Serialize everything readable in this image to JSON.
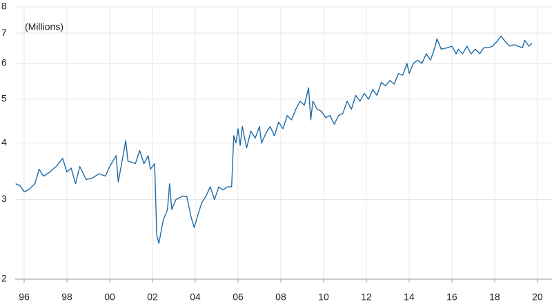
{
  "chart_data": {
    "type": "line",
    "annotation": "(Millions)",
    "log_scale": true,
    "grid": true,
    "color": "#1f6aa5",
    "x": [
      1995.6,
      1995.8,
      1996.0,
      1996.2,
      1996.5,
      1996.7,
      1996.9,
      1997.2,
      1997.5,
      1997.8,
      1998.0,
      1998.2,
      1998.4,
      1998.6,
      1998.9,
      1999.2,
      1999.5,
      1999.8,
      2000.0,
      2000.3,
      2000.4,
      2000.6,
      2000.75,
      2000.85,
      2001.2,
      2001.4,
      2001.6,
      2001.8,
      2001.9,
      2002.1,
      2002.2,
      2002.3,
      2002.5,
      2002.7,
      2002.8,
      2002.9,
      2003.1,
      2003.4,
      2003.6,
      2003.8,
      2003.95,
      2004.1,
      2004.3,
      2004.5,
      2004.7,
      2004.9,
      2005.1,
      2005.3,
      2005.5,
      2005.7,
      2005.8,
      2005.9,
      2006.0,
      2006.1,
      2006.2,
      2006.4,
      2006.6,
      2006.8,
      2007.0,
      2007.1,
      2007.3,
      2007.5,
      2007.7,
      2007.9,
      2008.1,
      2008.3,
      2008.5,
      2008.7,
      2008.9,
      2009.1,
      2009.3,
      2009.4,
      2009.5,
      2009.7,
      2009.9,
      2010.1,
      2010.3,
      2010.5,
      2010.7,
      2010.9,
      2011.1,
      2011.3,
      2011.5,
      2011.7,
      2011.9,
      2012.1,
      2012.3,
      2012.5,
      2012.7,
      2012.9,
      2013.1,
      2013.3,
      2013.5,
      2013.7,
      2013.9,
      2014.0,
      2014.2,
      2014.4,
      2014.6,
      2014.8,
      2015.0,
      2015.2,
      2015.3,
      2015.5,
      2015.8,
      2016.0,
      2016.2,
      2016.3,
      2016.5,
      2016.7,
      2016.9,
      2017.1,
      2017.3,
      2017.5,
      2017.7,
      2017.9,
      2018.1,
      2018.3,
      2018.5,
      2018.7,
      2018.9,
      2019.1,
      2019.3,
      2019.4,
      2019.6,
      2019.75
    ],
    "values": [
      3.25,
      3.22,
      3.12,
      3.15,
      3.25,
      3.5,
      3.38,
      3.45,
      3.55,
      3.7,
      3.45,
      3.52,
      3.25,
      3.55,
      3.32,
      3.35,
      3.42,
      3.38,
      3.55,
      3.75,
      3.28,
      3.7,
      4.05,
      3.65,
      3.6,
      3.85,
      3.6,
      3.75,
      3.5,
      3.6,
      2.5,
      2.4,
      2.7,
      2.85,
      3.25,
      2.85,
      3.0,
      3.05,
      3.05,
      2.75,
      2.6,
      2.75,
      2.95,
      3.05,
      3.2,
      3.0,
      3.2,
      3.15,
      3.2,
      3.2,
      4.15,
      4.0,
      4.3,
      3.95,
      4.35,
      3.9,
      4.25,
      4.1,
      4.35,
      4.0,
      4.2,
      4.35,
      4.15,
      4.45,
      4.3,
      4.6,
      4.5,
      4.75,
      4.95,
      4.85,
      5.3,
      4.5,
      4.95,
      4.75,
      4.7,
      4.55,
      4.6,
      4.4,
      4.6,
      4.65,
      4.95,
      4.75,
      5.1,
      4.95,
      5.15,
      5.0,
      5.25,
      5.1,
      5.45,
      5.35,
      5.5,
      5.4,
      5.7,
      5.65,
      6.0,
      5.7,
      6.0,
      6.1,
      6.0,
      6.3,
      6.1,
      6.5,
      6.8,
      6.45,
      6.5,
      6.55,
      6.3,
      6.45,
      6.3,
      6.55,
      6.3,
      6.45,
      6.3,
      6.5,
      6.5,
      6.55,
      6.7,
      6.9,
      6.7,
      6.55,
      6.6,
      6.55,
      6.5,
      6.75,
      6.55,
      6.65
    ],
    "xlim": [
      1995.58,
      2020.68
    ],
    "xticks": [
      {
        "value": 1996,
        "label": "96"
      },
      {
        "value": 1998,
        "label": "98"
      },
      {
        "value": 2000,
        "label": "00"
      },
      {
        "value": 2002,
        "label": "02"
      },
      {
        "value": 2004,
        "label": "04"
      },
      {
        "value": 2006,
        "label": "06"
      },
      {
        "value": 2008,
        "label": "08"
      },
      {
        "value": 2010,
        "label": "10"
      },
      {
        "value": 2012,
        "label": "12"
      },
      {
        "value": 2014,
        "label": "14"
      },
      {
        "value": 2016,
        "label": "16"
      },
      {
        "value": 2018,
        "label": "18"
      },
      {
        "value": 2020,
        "label": "20"
      }
    ],
    "ylim": [
      2,
      8
    ],
    "yticks": [
      2,
      3,
      4,
      5,
      6,
      7,
      8
    ]
  }
}
